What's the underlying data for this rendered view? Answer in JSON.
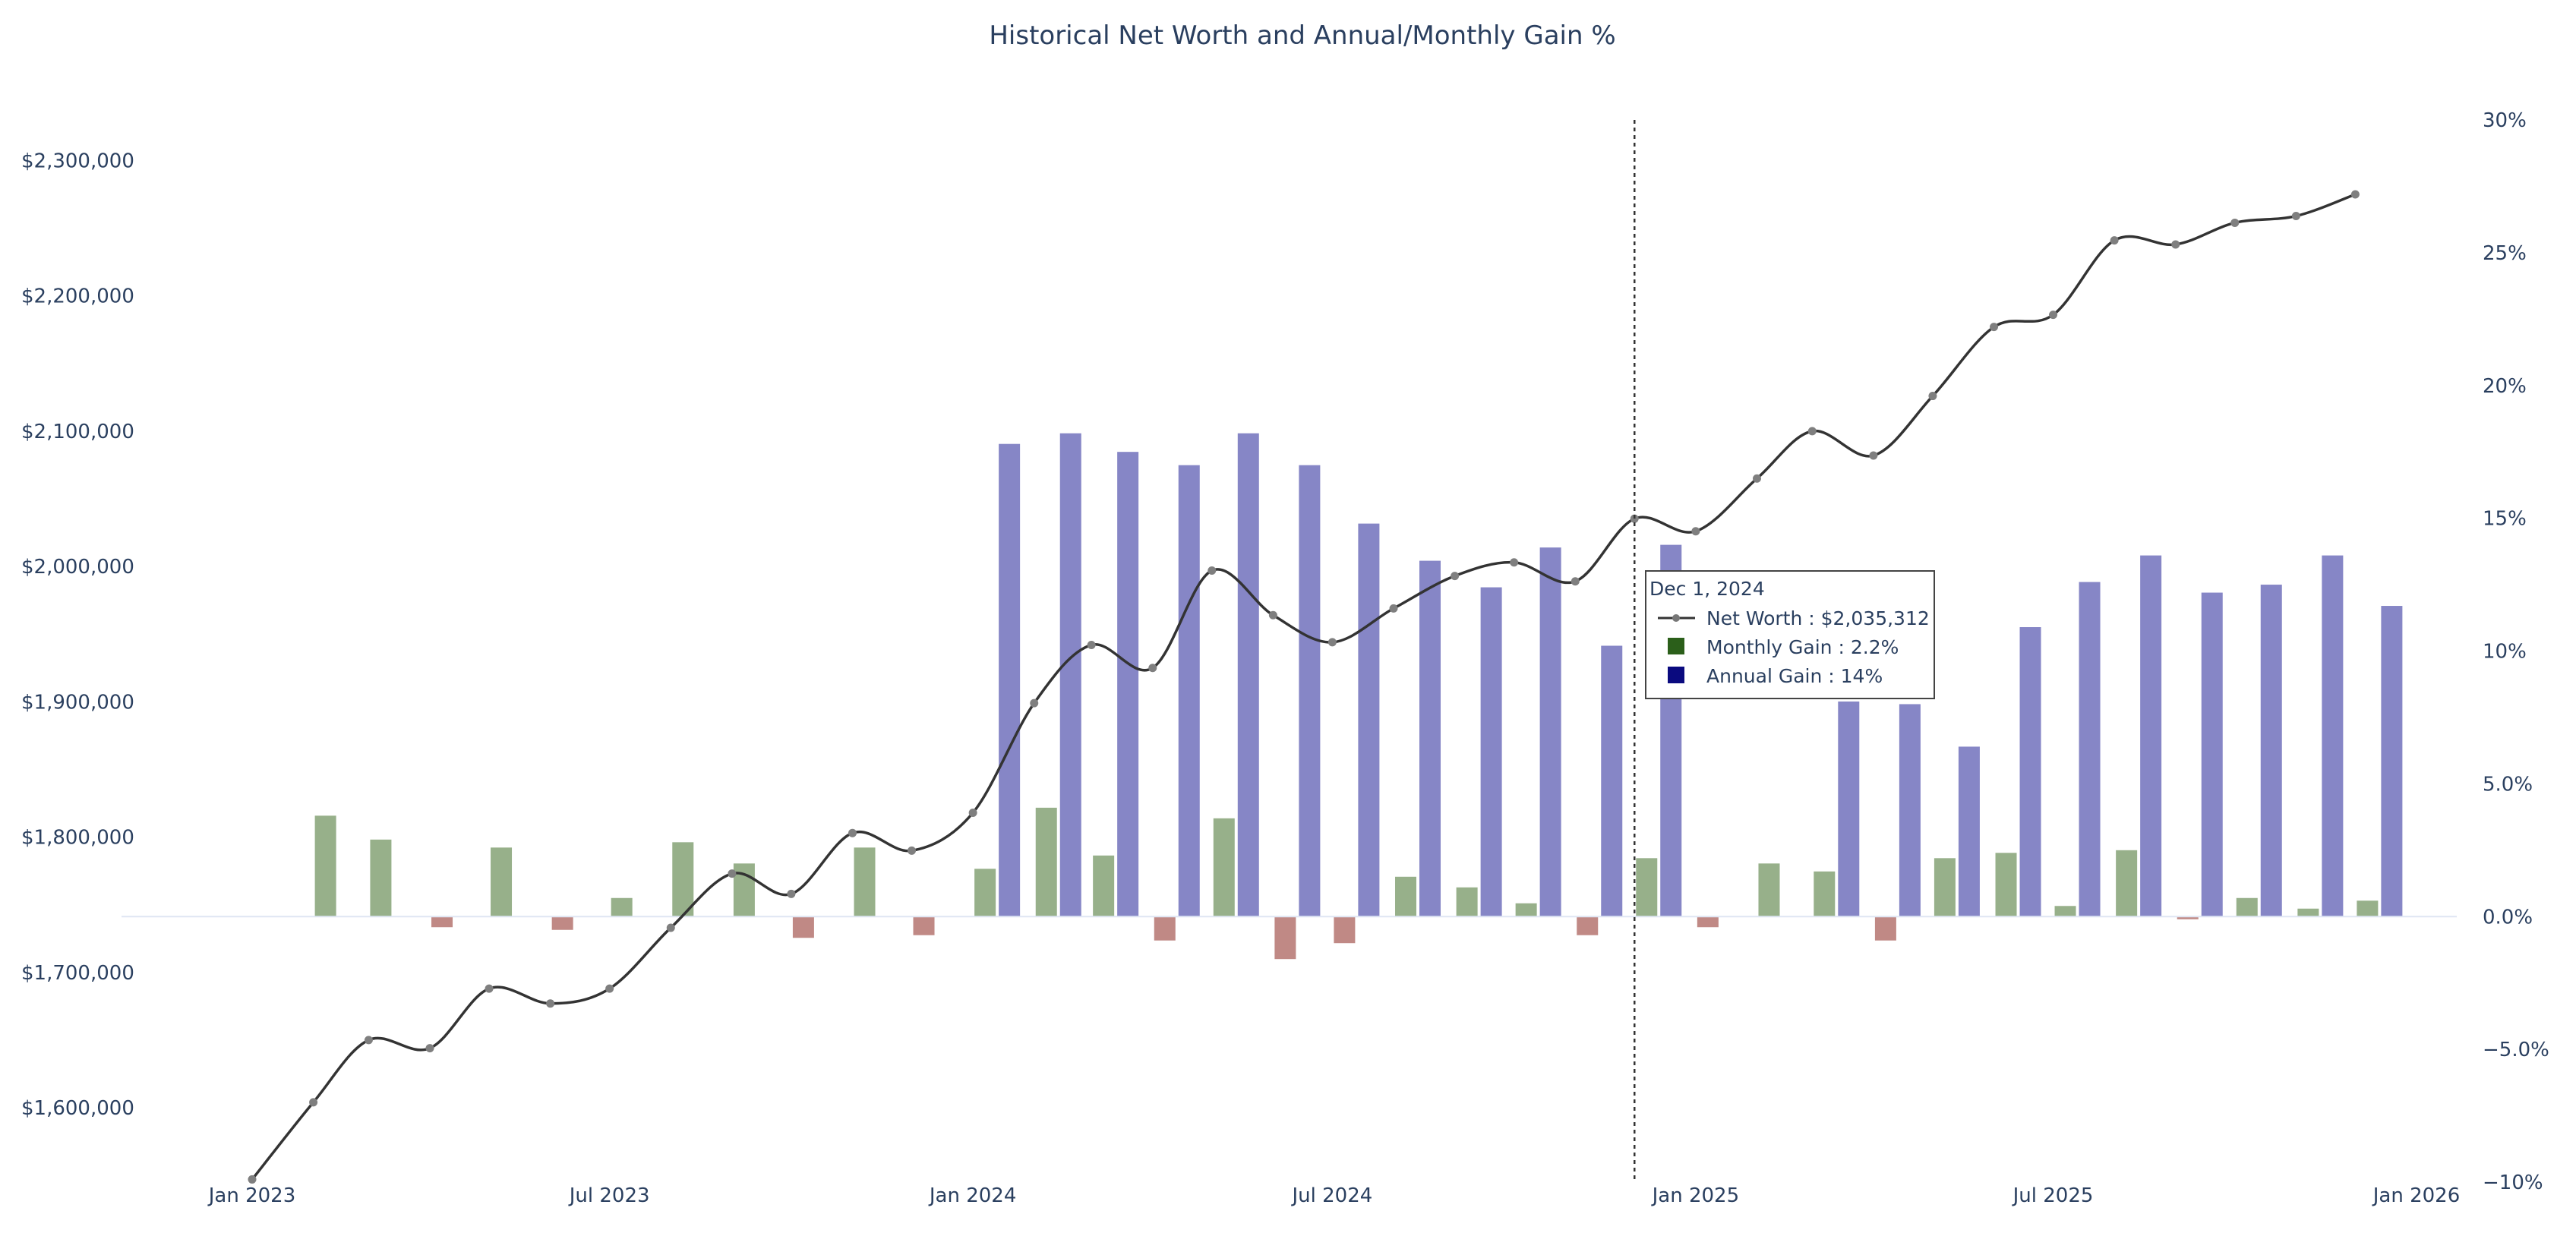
{
  "chart_data": {
    "type": "bar",
    "title": "Historical Net Worth and Annual/Monthly Gain %",
    "x_axis": {
      "type": "date",
      "range": [
        "2023-01-01",
        "2026-01-01"
      ],
      "tick_labels": [
        "Jan 2023",
        "Jul 2023",
        "Jan 2024",
        "Jul 2024",
        "Jan 2025",
        "Jul 2025",
        "Jan 2026"
      ]
    },
    "y_left": {
      "ylim": [
        1545000,
        2330000
      ],
      "tick_labels": [
        "$1,600,000",
        "$1,700,000",
        "$1,800,000",
        "$1,900,000",
        "$2,000,000",
        "$2,100,000",
        "$2,200,000",
        "$2,300,000"
      ],
      "tick_values": [
        1600000,
        1700000,
        1800000,
        1900000,
        2000000,
        2100000,
        2200000,
        2300000
      ]
    },
    "y_right": {
      "ylim": [
        -10,
        30
      ],
      "tick_labels": [
        "−10%",
        "−5.0%",
        "0.0%",
        "5.0%",
        "10%",
        "15%",
        "20%",
        "25%",
        "30%"
      ],
      "tick_values": [
        -10,
        -5,
        0,
        5,
        10,
        15,
        20,
        25,
        30
      ]
    },
    "dates": [
      "2023-01-01",
      "2023-02-01",
      "2023-03-01",
      "2023-04-01",
      "2023-05-01",
      "2023-06-01",
      "2023-07-01",
      "2023-08-01",
      "2023-09-01",
      "2023-10-01",
      "2023-11-01",
      "2023-12-01",
      "2024-01-01",
      "2024-02-01",
      "2024-03-01",
      "2024-04-01",
      "2024-05-01",
      "2024-06-01",
      "2024-07-01",
      "2024-08-01",
      "2024-09-01",
      "2024-10-01",
      "2024-11-01",
      "2024-12-01",
      "2025-01-01",
      "2025-02-01",
      "2025-03-01",
      "2025-04-01",
      "2025-05-01",
      "2025-06-01",
      "2025-07-01",
      "2025-08-01",
      "2025-09-01",
      "2025-10-01",
      "2025-11-01",
      "2025-12-01"
    ],
    "series": [
      {
        "name": "Net Worth",
        "kind": "line",
        "axis": "left",
        "color": "#333333",
        "values": [
          1547000,
          1604000,
          1650000,
          1644000,
          1688000,
          1677000,
          1688000,
          1733000,
          1773000,
          1758000,
          1803000,
          1790000,
          1818000,
          1899000,
          1942000,
          1925000,
          1997000,
          1964000,
          1944000,
          1969000,
          1993000,
          2003000,
          1989000,
          2035312,
          2026000,
          2065000,
          2100000,
          2082000,
          2126000,
          2177000,
          2186000,
          2241000,
          2238000,
          2254000,
          2259000,
          2275000
        ]
      },
      {
        "name": "Monthly Gain",
        "kind": "bar",
        "axis": "right",
        "legend_color": "#2b5f1a",
        "color_positive": "#97b08a",
        "color_negative": "#c08985",
        "values": [
          null,
          3.8,
          2.9,
          -0.4,
          2.6,
          -0.5,
          0.7,
          2.8,
          2.0,
          -0.8,
          2.6,
          -0.7,
          1.8,
          4.1,
          2.3,
          -0.9,
          3.7,
          -1.6,
          -1.0,
          1.5,
          1.1,
          0.5,
          -0.7,
          2.2,
          -0.4,
          2.0,
          1.7,
          -0.9,
          2.2,
          2.4,
          0.4,
          2.5,
          -0.1,
          0.7,
          0.3,
          0.6
        ]
      },
      {
        "name": "Annual Gain",
        "kind": "bar",
        "axis": "right",
        "legend_color": "#0a0a7f",
        "color": "#8686c6",
        "values": [
          null,
          null,
          null,
          null,
          null,
          null,
          null,
          null,
          null,
          null,
          null,
          null,
          17.8,
          18.2,
          17.5,
          17.0,
          18.2,
          17.0,
          14.8,
          13.4,
          12.4,
          13.9,
          10.2,
          14.0,
          null,
          null,
          8.1,
          8.0,
          6.4,
          10.9,
          12.6,
          13.6,
          12.2,
          12.5,
          13.6,
          11.7
        ]
      }
    ],
    "hover": {
      "date_label": "Dec 1, 2024",
      "date": "2024-12-01",
      "rows": [
        {
          "marker": "line",
          "text": "Net Worth : $2,035,312"
        },
        {
          "marker": "square",
          "color": "#2b5f1a",
          "text": "Monthly Gain : 2.2%"
        },
        {
          "marker": "square",
          "color": "#0a0a7f",
          "text": "Annual Gain : 14%"
        }
      ]
    },
    "grid": false,
    "legend": "none"
  }
}
